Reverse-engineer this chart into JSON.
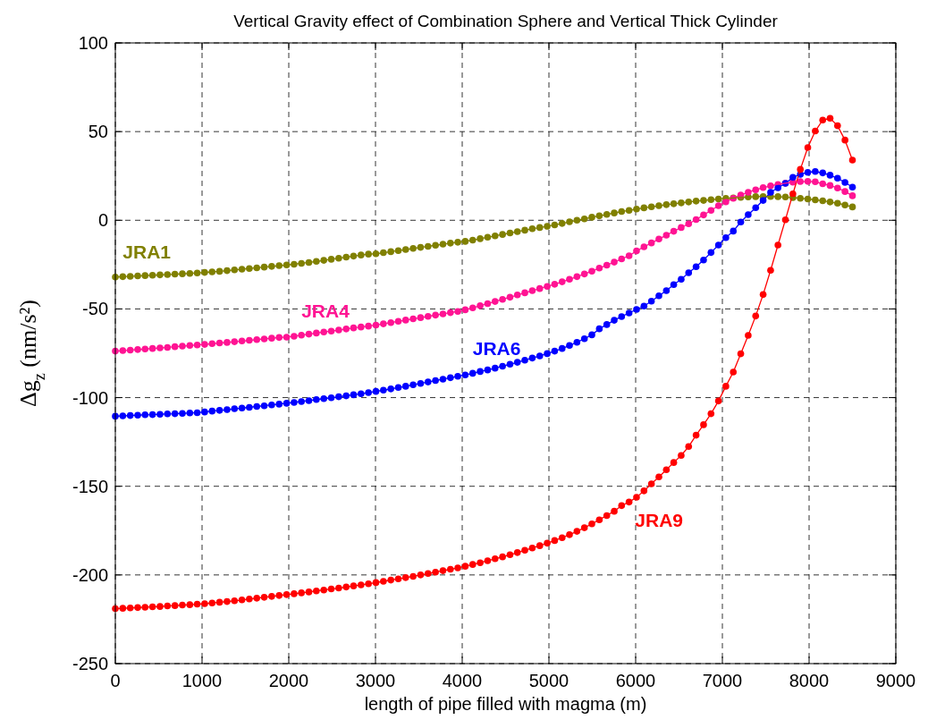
{
  "chart_data": {
    "type": "line",
    "title": "Vertical Gravity effect of Combination Sphere and Vertical Thick Cylinder",
    "xlabel": "length of pipe filled with magma (m)",
    "ylabel": "Δg$_{z}$ (nm/s²)",
    "x": [
      0,
      86,
      172,
      258,
      343,
      429,
      515,
      601,
      687,
      773,
      859,
      944,
      1030,
      1116,
      1202,
      1288,
      1374,
      1460,
      1545,
      1631,
      1717,
      1803,
      1889,
      1975,
      2061,
      2146,
      2232,
      2318,
      2404,
      2490,
      2576,
      2662,
      2747,
      2833,
      2919,
      3005,
      3091,
      3177,
      3263,
      3348,
      3434,
      3520,
      3606,
      3692,
      3778,
      3864,
      3949,
      4035,
      4121,
      4207,
      4293,
      4379,
      4465,
      4551,
      4636,
      4722,
      4808,
      4894,
      4980,
      5066,
      5152,
      5237,
      5323,
      5409,
      5495,
      5581,
      5667,
      5753,
      5838,
      5924,
      6010,
      6096,
      6182,
      6268,
      6354,
      6439,
      6525,
      6611,
      6697,
      6783,
      6869,
      6955,
      7040,
      7126,
      7212,
      7298,
      7384,
      7470,
      7556,
      7641,
      7727,
      7813,
      7899,
      7985,
      8071,
      8157,
      8242,
      8328,
      8414,
      8500
    ],
    "series": [
      {
        "name": "JRA1",
        "color": "#808000",
        "values": [
          -32,
          -31.8,
          -31.6,
          -31.4,
          -31.2,
          -31,
          -30.8,
          -30.6,
          -30.4,
          -30.2,
          -30,
          -29.7,
          -29.4,
          -29.1,
          -28.8,
          -28.4,
          -28,
          -27.6,
          -27.2,
          -26.8,
          -26.4,
          -26,
          -25.6,
          -25.2,
          -24.8,
          -24.3,
          -23.8,
          -23.2,
          -22.6,
          -22,
          -21.4,
          -20.8,
          -20.2,
          -19.6,
          -19.1,
          -18.9,
          -18.3,
          -17.7,
          -17.1,
          -16.5,
          -15.9,
          -15.3,
          -14.7,
          -14.1,
          -13.5,
          -12.9,
          -12.4,
          -11.9,
          -11.2,
          -10.4,
          -9.6,
          -8.8,
          -8,
          -7.2,
          -6.4,
          -5.6,
          -4.8,
          -4.1,
          -3.4,
          -2.6,
          -1.8,
          -0.9,
          0,
          0.8,
          1.7,
          2.5,
          3.3,
          4.1,
          4.9,
          5.6,
          6.3,
          7,
          7.6,
          8.2,
          8.8,
          9.3,
          9.8,
          10.3,
          10.8,
          11.2,
          11.6,
          12,
          12.3,
          12.6,
          12.9,
          13.1,
          13.3,
          13.4,
          13.4,
          13.3,
          13.1,
          12.8,
          12.4,
          12,
          11.5,
          11,
          10.3,
          9.6,
          8.6,
          7.5
        ]
      },
      {
        "name": "JRA4",
        "color": "#ff1493",
        "values": [
          -73.8,
          -73.5,
          -73.2,
          -72.9,
          -72.6,
          -72.3,
          -72,
          -71.7,
          -71.3,
          -71,
          -70.6,
          -70.3,
          -70,
          -69.6,
          -69.2,
          -68.9,
          -68.5,
          -68.1,
          -67.7,
          -67.3,
          -66.9,
          -66.5,
          -66.1,
          -65.9,
          -65.4,
          -64.8,
          -64.2,
          -63.6,
          -63,
          -62.5,
          -61.9,
          -61.3,
          -60.7,
          -60.2,
          -59.7,
          -59.1,
          -58.4,
          -57.7,
          -57,
          -56.3,
          -55.6,
          -54.9,
          -54.2,
          -53.5,
          -52.8,
          -52.1,
          -51.4,
          -50.5,
          -49.4,
          -48.2,
          -47,
          -45.8,
          -44.6,
          -43.4,
          -42.1,
          -40.9,
          -39.7,
          -38.5,
          -37.3,
          -36.1,
          -34.7,
          -33.3,
          -31.8,
          -30.3,
          -28.7,
          -27,
          -25.3,
          -23.6,
          -21.8,
          -20,
          -17.3,
          -15,
          -12.8,
          -10.6,
          -8.4,
          -6.2,
          -4.1,
          -2,
          0.4,
          3,
          5.6,
          8.2,
          10.4,
          12.4,
          14.2,
          15.8,
          17.2,
          18.4,
          19.4,
          20.2,
          20.9,
          21.5,
          21.8,
          21.9,
          21.7,
          20.6,
          19.6,
          18.2,
          16.2,
          13.8
        ]
      },
      {
        "name": "JRA6",
        "color": "#0000ff",
        "values": [
          -110.5,
          -110.3,
          -110.1,
          -109.9,
          -109.7,
          -109.6,
          -109.4,
          -109.2,
          -109.1,
          -108.9,
          -108.7,
          -108.5,
          -108.1,
          -107.6,
          -107.2,
          -106.8,
          -106.3,
          -105.9,
          -105.5,
          -105,
          -104.6,
          -104.1,
          -103.7,
          -103.2,
          -102.7,
          -102.2,
          -101.7,
          -101.1,
          -100.6,
          -100.1,
          -99.5,
          -99,
          -98.4,
          -97.8,
          -97.2,
          -96.5,
          -95.8,
          -95.1,
          -94.3,
          -93.6,
          -92.8,
          -92,
          -91.2,
          -90.4,
          -89.6,
          -88.8,
          -88,
          -87.2,
          -86.3,
          -85.3,
          -84.4,
          -83.4,
          -82.3,
          -81.2,
          -80.1,
          -78.9,
          -77.7,
          -76.5,
          -75.2,
          -73.8,
          -72.3,
          -70.6,
          -68.8,
          -66.8,
          -64.6,
          -61.2,
          -58.8,
          -56.4,
          -54.3,
          -52.3,
          -50.3,
          -48.4,
          -45.6,
          -42.6,
          -39.7,
          -36.3,
          -33.3,
          -29.6,
          -26.2,
          -22.4,
          -18.2,
          -14,
          -9.8,
          -6.1,
          -1,
          3.2,
          7.1,
          11.2,
          15.8,
          18.3,
          20.8,
          24.2,
          25.9,
          27,
          27.5,
          26.7,
          25.4,
          23.7,
          21.3,
          18.7
        ]
      },
      {
        "name": "JRA9",
        "color": "#ff0000",
        "values": [
          -219,
          -218.8,
          -218.6,
          -218.4,
          -218.2,
          -218,
          -217.8,
          -217.5,
          -217.3,
          -217,
          -216.8,
          -216.5,
          -216.2,
          -215.8,
          -215.4,
          -215,
          -214.6,
          -214.1,
          -213.6,
          -213.1,
          -212.6,
          -212.1,
          -211.6,
          -211.1,
          -210.6,
          -210.1,
          -209.6,
          -209,
          -208.5,
          -207.9,
          -207.4,
          -206.8,
          -206.2,
          -205.6,
          -205,
          -204.3,
          -203.6,
          -202.9,
          -202.2,
          -201.5,
          -200.8,
          -200,
          -199.2,
          -198.4,
          -197.6,
          -196.8,
          -196,
          -195.1,
          -194.1,
          -193.1,
          -192,
          -190.9,
          -189.8,
          -188.6,
          -187.4,
          -186.1,
          -184.8,
          -183.5,
          -182.1,
          -180.6,
          -179,
          -177.3,
          -175.4,
          -173.4,
          -171.2,
          -168.9,
          -166.5,
          -164.1,
          -160.9,
          -158.9,
          -156.2,
          -152.6,
          -148.6,
          -144.7,
          -140.7,
          -136.6,
          -132.6,
          -127.6,
          -121.2,
          -115.3,
          -109.1,
          -101.9,
          -93.6,
          -85.6,
          -75.3,
          -64.9,
          -54,
          -41.9,
          -28.2,
          -14,
          0.3,
          14.9,
          28.7,
          41,
          50.3,
          56.5,
          57.5,
          53.3,
          45.2,
          33.9
        ]
      }
    ],
    "xlim": [
      0,
      9000
    ],
    "xticks": [
      0,
      1000,
      2000,
      3000,
      4000,
      5000,
      6000,
      7000,
      8000,
      9000
    ],
    "ylim": [
      -250,
      100
    ],
    "yticks": [
      -250,
      -200,
      -150,
      -100,
      -50,
      0,
      50,
      100
    ],
    "grid": true,
    "marker": "circle",
    "line_style": "solid"
  }
}
